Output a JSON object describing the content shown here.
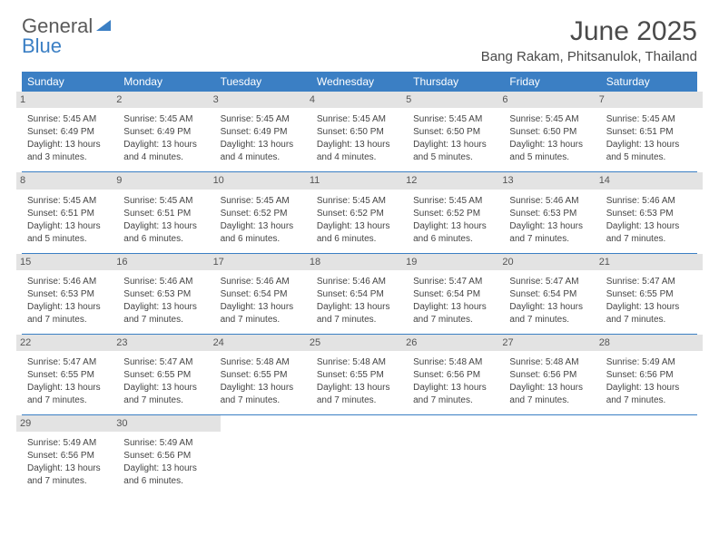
{
  "brand": {
    "line1": "General",
    "line2": "Blue"
  },
  "title": "June 2025",
  "location": "Bang Rakam, Phitsanulok, Thailand",
  "colors": {
    "header_bg": "#3b7fc4",
    "header_text": "#ffffff",
    "daynum_bg": "#e3e3e3",
    "text": "#444444",
    "brand_gray": "#5a5a5a",
    "brand_blue": "#3b7fc4",
    "page_bg": "#ffffff",
    "rule": "#3b7fc4"
  },
  "typography": {
    "title_fontsize": 30,
    "location_fontsize": 15,
    "day_header_fontsize": 12,
    "daynum_fontsize": 11,
    "body_fontsize": 10
  },
  "day_headers": [
    "Sunday",
    "Monday",
    "Tuesday",
    "Wednesday",
    "Thursday",
    "Friday",
    "Saturday"
  ],
  "weeks": [
    [
      {
        "n": "1",
        "sr": "Sunrise: 5:45 AM",
        "ss": "Sunset: 6:49 PM",
        "d1": "Daylight: 13 hours",
        "d2": "and 3 minutes."
      },
      {
        "n": "2",
        "sr": "Sunrise: 5:45 AM",
        "ss": "Sunset: 6:49 PM",
        "d1": "Daylight: 13 hours",
        "d2": "and 4 minutes."
      },
      {
        "n": "3",
        "sr": "Sunrise: 5:45 AM",
        "ss": "Sunset: 6:49 PM",
        "d1": "Daylight: 13 hours",
        "d2": "and 4 minutes."
      },
      {
        "n": "4",
        "sr": "Sunrise: 5:45 AM",
        "ss": "Sunset: 6:50 PM",
        "d1": "Daylight: 13 hours",
        "d2": "and 4 minutes."
      },
      {
        "n": "5",
        "sr": "Sunrise: 5:45 AM",
        "ss": "Sunset: 6:50 PM",
        "d1": "Daylight: 13 hours",
        "d2": "and 5 minutes."
      },
      {
        "n": "6",
        "sr": "Sunrise: 5:45 AM",
        "ss": "Sunset: 6:50 PM",
        "d1": "Daylight: 13 hours",
        "d2": "and 5 minutes."
      },
      {
        "n": "7",
        "sr": "Sunrise: 5:45 AM",
        "ss": "Sunset: 6:51 PM",
        "d1": "Daylight: 13 hours",
        "d2": "and 5 minutes."
      }
    ],
    [
      {
        "n": "8",
        "sr": "Sunrise: 5:45 AM",
        "ss": "Sunset: 6:51 PM",
        "d1": "Daylight: 13 hours",
        "d2": "and 5 minutes."
      },
      {
        "n": "9",
        "sr": "Sunrise: 5:45 AM",
        "ss": "Sunset: 6:51 PM",
        "d1": "Daylight: 13 hours",
        "d2": "and 6 minutes."
      },
      {
        "n": "10",
        "sr": "Sunrise: 5:45 AM",
        "ss": "Sunset: 6:52 PM",
        "d1": "Daylight: 13 hours",
        "d2": "and 6 minutes."
      },
      {
        "n": "11",
        "sr": "Sunrise: 5:45 AM",
        "ss": "Sunset: 6:52 PM",
        "d1": "Daylight: 13 hours",
        "d2": "and 6 minutes."
      },
      {
        "n": "12",
        "sr": "Sunrise: 5:45 AM",
        "ss": "Sunset: 6:52 PM",
        "d1": "Daylight: 13 hours",
        "d2": "and 6 minutes."
      },
      {
        "n": "13",
        "sr": "Sunrise: 5:46 AM",
        "ss": "Sunset: 6:53 PM",
        "d1": "Daylight: 13 hours",
        "d2": "and 7 minutes."
      },
      {
        "n": "14",
        "sr": "Sunrise: 5:46 AM",
        "ss": "Sunset: 6:53 PM",
        "d1": "Daylight: 13 hours",
        "d2": "and 7 minutes."
      }
    ],
    [
      {
        "n": "15",
        "sr": "Sunrise: 5:46 AM",
        "ss": "Sunset: 6:53 PM",
        "d1": "Daylight: 13 hours",
        "d2": "and 7 minutes."
      },
      {
        "n": "16",
        "sr": "Sunrise: 5:46 AM",
        "ss": "Sunset: 6:53 PM",
        "d1": "Daylight: 13 hours",
        "d2": "and 7 minutes."
      },
      {
        "n": "17",
        "sr": "Sunrise: 5:46 AM",
        "ss": "Sunset: 6:54 PM",
        "d1": "Daylight: 13 hours",
        "d2": "and 7 minutes."
      },
      {
        "n": "18",
        "sr": "Sunrise: 5:46 AM",
        "ss": "Sunset: 6:54 PM",
        "d1": "Daylight: 13 hours",
        "d2": "and 7 minutes."
      },
      {
        "n": "19",
        "sr": "Sunrise: 5:47 AM",
        "ss": "Sunset: 6:54 PM",
        "d1": "Daylight: 13 hours",
        "d2": "and 7 minutes."
      },
      {
        "n": "20",
        "sr": "Sunrise: 5:47 AM",
        "ss": "Sunset: 6:54 PM",
        "d1": "Daylight: 13 hours",
        "d2": "and 7 minutes."
      },
      {
        "n": "21",
        "sr": "Sunrise: 5:47 AM",
        "ss": "Sunset: 6:55 PM",
        "d1": "Daylight: 13 hours",
        "d2": "and 7 minutes."
      }
    ],
    [
      {
        "n": "22",
        "sr": "Sunrise: 5:47 AM",
        "ss": "Sunset: 6:55 PM",
        "d1": "Daylight: 13 hours",
        "d2": "and 7 minutes."
      },
      {
        "n": "23",
        "sr": "Sunrise: 5:47 AM",
        "ss": "Sunset: 6:55 PM",
        "d1": "Daylight: 13 hours",
        "d2": "and 7 minutes."
      },
      {
        "n": "24",
        "sr": "Sunrise: 5:48 AM",
        "ss": "Sunset: 6:55 PM",
        "d1": "Daylight: 13 hours",
        "d2": "and 7 minutes."
      },
      {
        "n": "25",
        "sr": "Sunrise: 5:48 AM",
        "ss": "Sunset: 6:55 PM",
        "d1": "Daylight: 13 hours",
        "d2": "and 7 minutes."
      },
      {
        "n": "26",
        "sr": "Sunrise: 5:48 AM",
        "ss": "Sunset: 6:56 PM",
        "d1": "Daylight: 13 hours",
        "d2": "and 7 minutes."
      },
      {
        "n": "27",
        "sr": "Sunrise: 5:48 AM",
        "ss": "Sunset: 6:56 PM",
        "d1": "Daylight: 13 hours",
        "d2": "and 7 minutes."
      },
      {
        "n": "28",
        "sr": "Sunrise: 5:49 AM",
        "ss": "Sunset: 6:56 PM",
        "d1": "Daylight: 13 hours",
        "d2": "and 7 minutes."
      }
    ],
    [
      {
        "n": "29",
        "sr": "Sunrise: 5:49 AM",
        "ss": "Sunset: 6:56 PM",
        "d1": "Daylight: 13 hours",
        "d2": "and 7 minutes."
      },
      {
        "n": "30",
        "sr": "Sunrise: 5:49 AM",
        "ss": "Sunset: 6:56 PM",
        "d1": "Daylight: 13 hours",
        "d2": "and 6 minutes."
      },
      null,
      null,
      null,
      null,
      null
    ]
  ]
}
